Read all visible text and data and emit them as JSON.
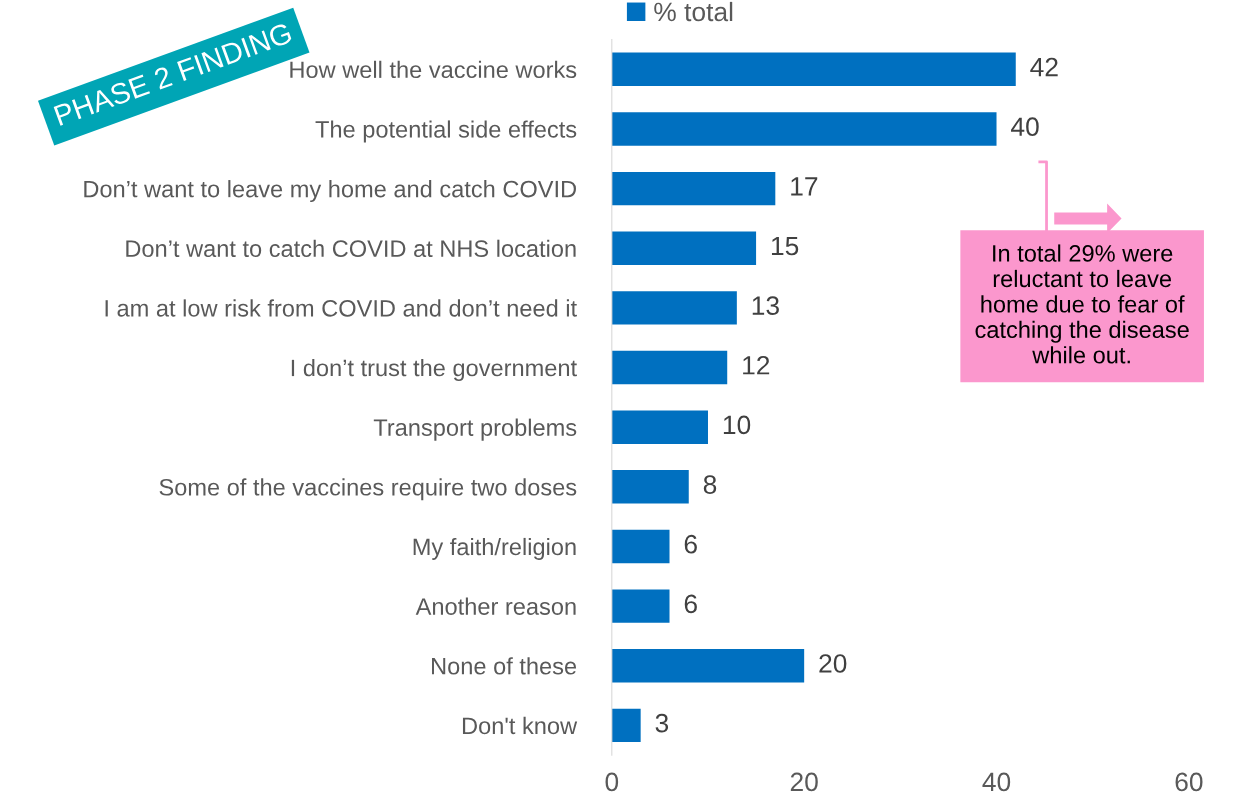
{
  "chart_data": {
    "type": "bar",
    "orientation": "horizontal",
    "categories": [
      "How well the vaccine works",
      "The potential side effects",
      "Don’t want to leave my home and catch COVID",
      "Don’t want to catch COVID at NHS location",
      "I am at low risk from COVID and don’t need it",
      "I don’t trust the government",
      "Transport problems",
      "Some of the vaccines require two doses",
      "My faith/religion",
      "Another reason",
      "None of these",
      "Don't know"
    ],
    "series": [
      {
        "name": "% total",
        "color": "#0070c0",
        "values": [
          42,
          40,
          17,
          15,
          13,
          12,
          10,
          8,
          6,
          6,
          20,
          3
        ]
      }
    ],
    "xlim": [
      0,
      60
    ],
    "xticks": [
      0,
      20,
      40,
      60
    ],
    "data_labels": true,
    "legend": "top",
    "grid": false,
    "annotations": [
      "PHASE 2 FINDING",
      "In total 29% were reluctant to leave home due to fear of catching the disease while out."
    ]
  }
}
